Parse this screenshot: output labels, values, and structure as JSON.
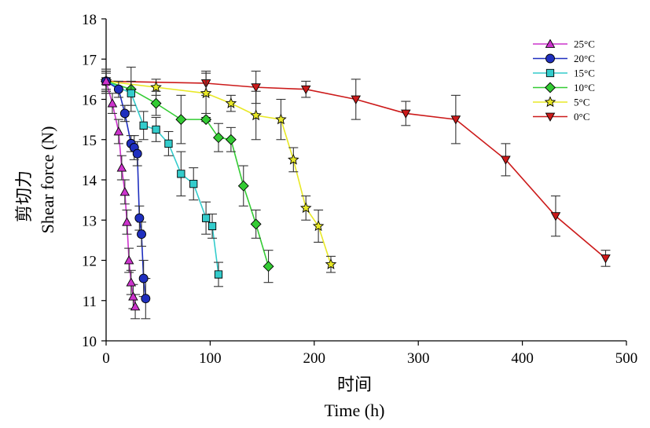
{
  "chart_data": {
    "type": "line",
    "xlabel": "Time (h)",
    "xlabel_cn": "时间",
    "ylabel": "Shear force (N)",
    "ylabel_cn": "剪切力",
    "xlim": [
      0,
      500
    ],
    "ylim": [
      10,
      18
    ],
    "xticks": [
      "0",
      "100",
      "200",
      "300",
      "400",
      "500"
    ],
    "yticks": [
      "10",
      "11",
      "12",
      "13",
      "14",
      "15",
      "16",
      "17",
      "18"
    ],
    "grid": false,
    "legend_position": "top-right",
    "series": [
      {
        "name": "25°C",
        "color": "#cc33cc",
        "marker": "triangle-up",
        "x": [
          0,
          6,
          12,
          15,
          18,
          20,
          22,
          24,
          26,
          28
        ],
        "y": [
          16.45,
          15.9,
          15.2,
          14.3,
          13.7,
          12.95,
          12.0,
          11.45,
          11.1,
          10.85
        ],
        "err": [
          0.2,
          0.25,
          0.3,
          0.3,
          0.3,
          0.3,
          0.3,
          0.3,
          0.3,
          0.3
        ]
      },
      {
        "name": "20°C",
        "color": "#1f2fbf",
        "marker": "circle",
        "x": [
          0,
          12,
          18,
          24,
          27,
          30,
          32,
          34,
          36,
          38
        ],
        "y": [
          16.45,
          16.25,
          15.65,
          14.9,
          14.8,
          14.65,
          13.05,
          12.65,
          11.55,
          11.05
        ],
        "err": [
          0.25,
          0.2,
          0.2,
          0.2,
          0.3,
          0.3,
          0.3,
          0.3,
          0.45,
          0.5
        ]
      },
      {
        "name": "15°C",
        "color": "#33cccc",
        "marker": "square",
        "x": [
          0,
          24,
          36,
          48,
          60,
          72,
          84,
          96,
          102,
          108
        ],
        "y": [
          16.45,
          16.15,
          15.35,
          15.25,
          14.9,
          14.15,
          13.9,
          13.05,
          12.85,
          11.65
        ],
        "err": [
          0.25,
          0.3,
          0.35,
          0.3,
          0.3,
          0.55,
          0.4,
          0.4,
          0.3,
          0.3
        ]
      },
      {
        "name": "10°C",
        "color": "#33cc33",
        "marker": "diamond",
        "x": [
          0,
          24,
          48,
          72,
          96,
          108,
          120,
          132,
          144,
          156
        ],
        "y": [
          16.45,
          16.25,
          15.9,
          15.5,
          15.5,
          15.05,
          15.0,
          13.85,
          12.9,
          11.85
        ],
        "err": [
          0.3,
          0.55,
          0.3,
          0.6,
          0.05,
          0.35,
          0.3,
          0.5,
          0.35,
          0.4
        ]
      },
      {
        "name": "5°C",
        "color": "#e8e826",
        "marker": "star",
        "x": [
          0,
          48,
          96,
          120,
          144,
          168,
          180,
          192,
          204,
          216
        ],
        "y": [
          16.45,
          16.3,
          16.15,
          15.9,
          15.6,
          15.5,
          14.5,
          13.3,
          12.85,
          11.9
        ],
        "err": [
          0.25,
          0.2,
          0.5,
          0.2,
          0.6,
          0.5,
          0.3,
          0.3,
          0.4,
          0.2
        ]
      },
      {
        "name": "0°C",
        "color": "#cc1a1a",
        "marker": "triangle-down",
        "x": [
          0,
          96,
          144,
          192,
          240,
          288,
          336,
          384,
          432,
          480
        ],
        "y": [
          16.45,
          16.4,
          16.3,
          16.25,
          16.0,
          15.65,
          15.5,
          14.5,
          13.1,
          12.05
        ],
        "err": [
          0.3,
          0.3,
          0.4,
          0.2,
          0.5,
          0.3,
          0.6,
          0.4,
          0.5,
          0.2
        ]
      }
    ]
  }
}
